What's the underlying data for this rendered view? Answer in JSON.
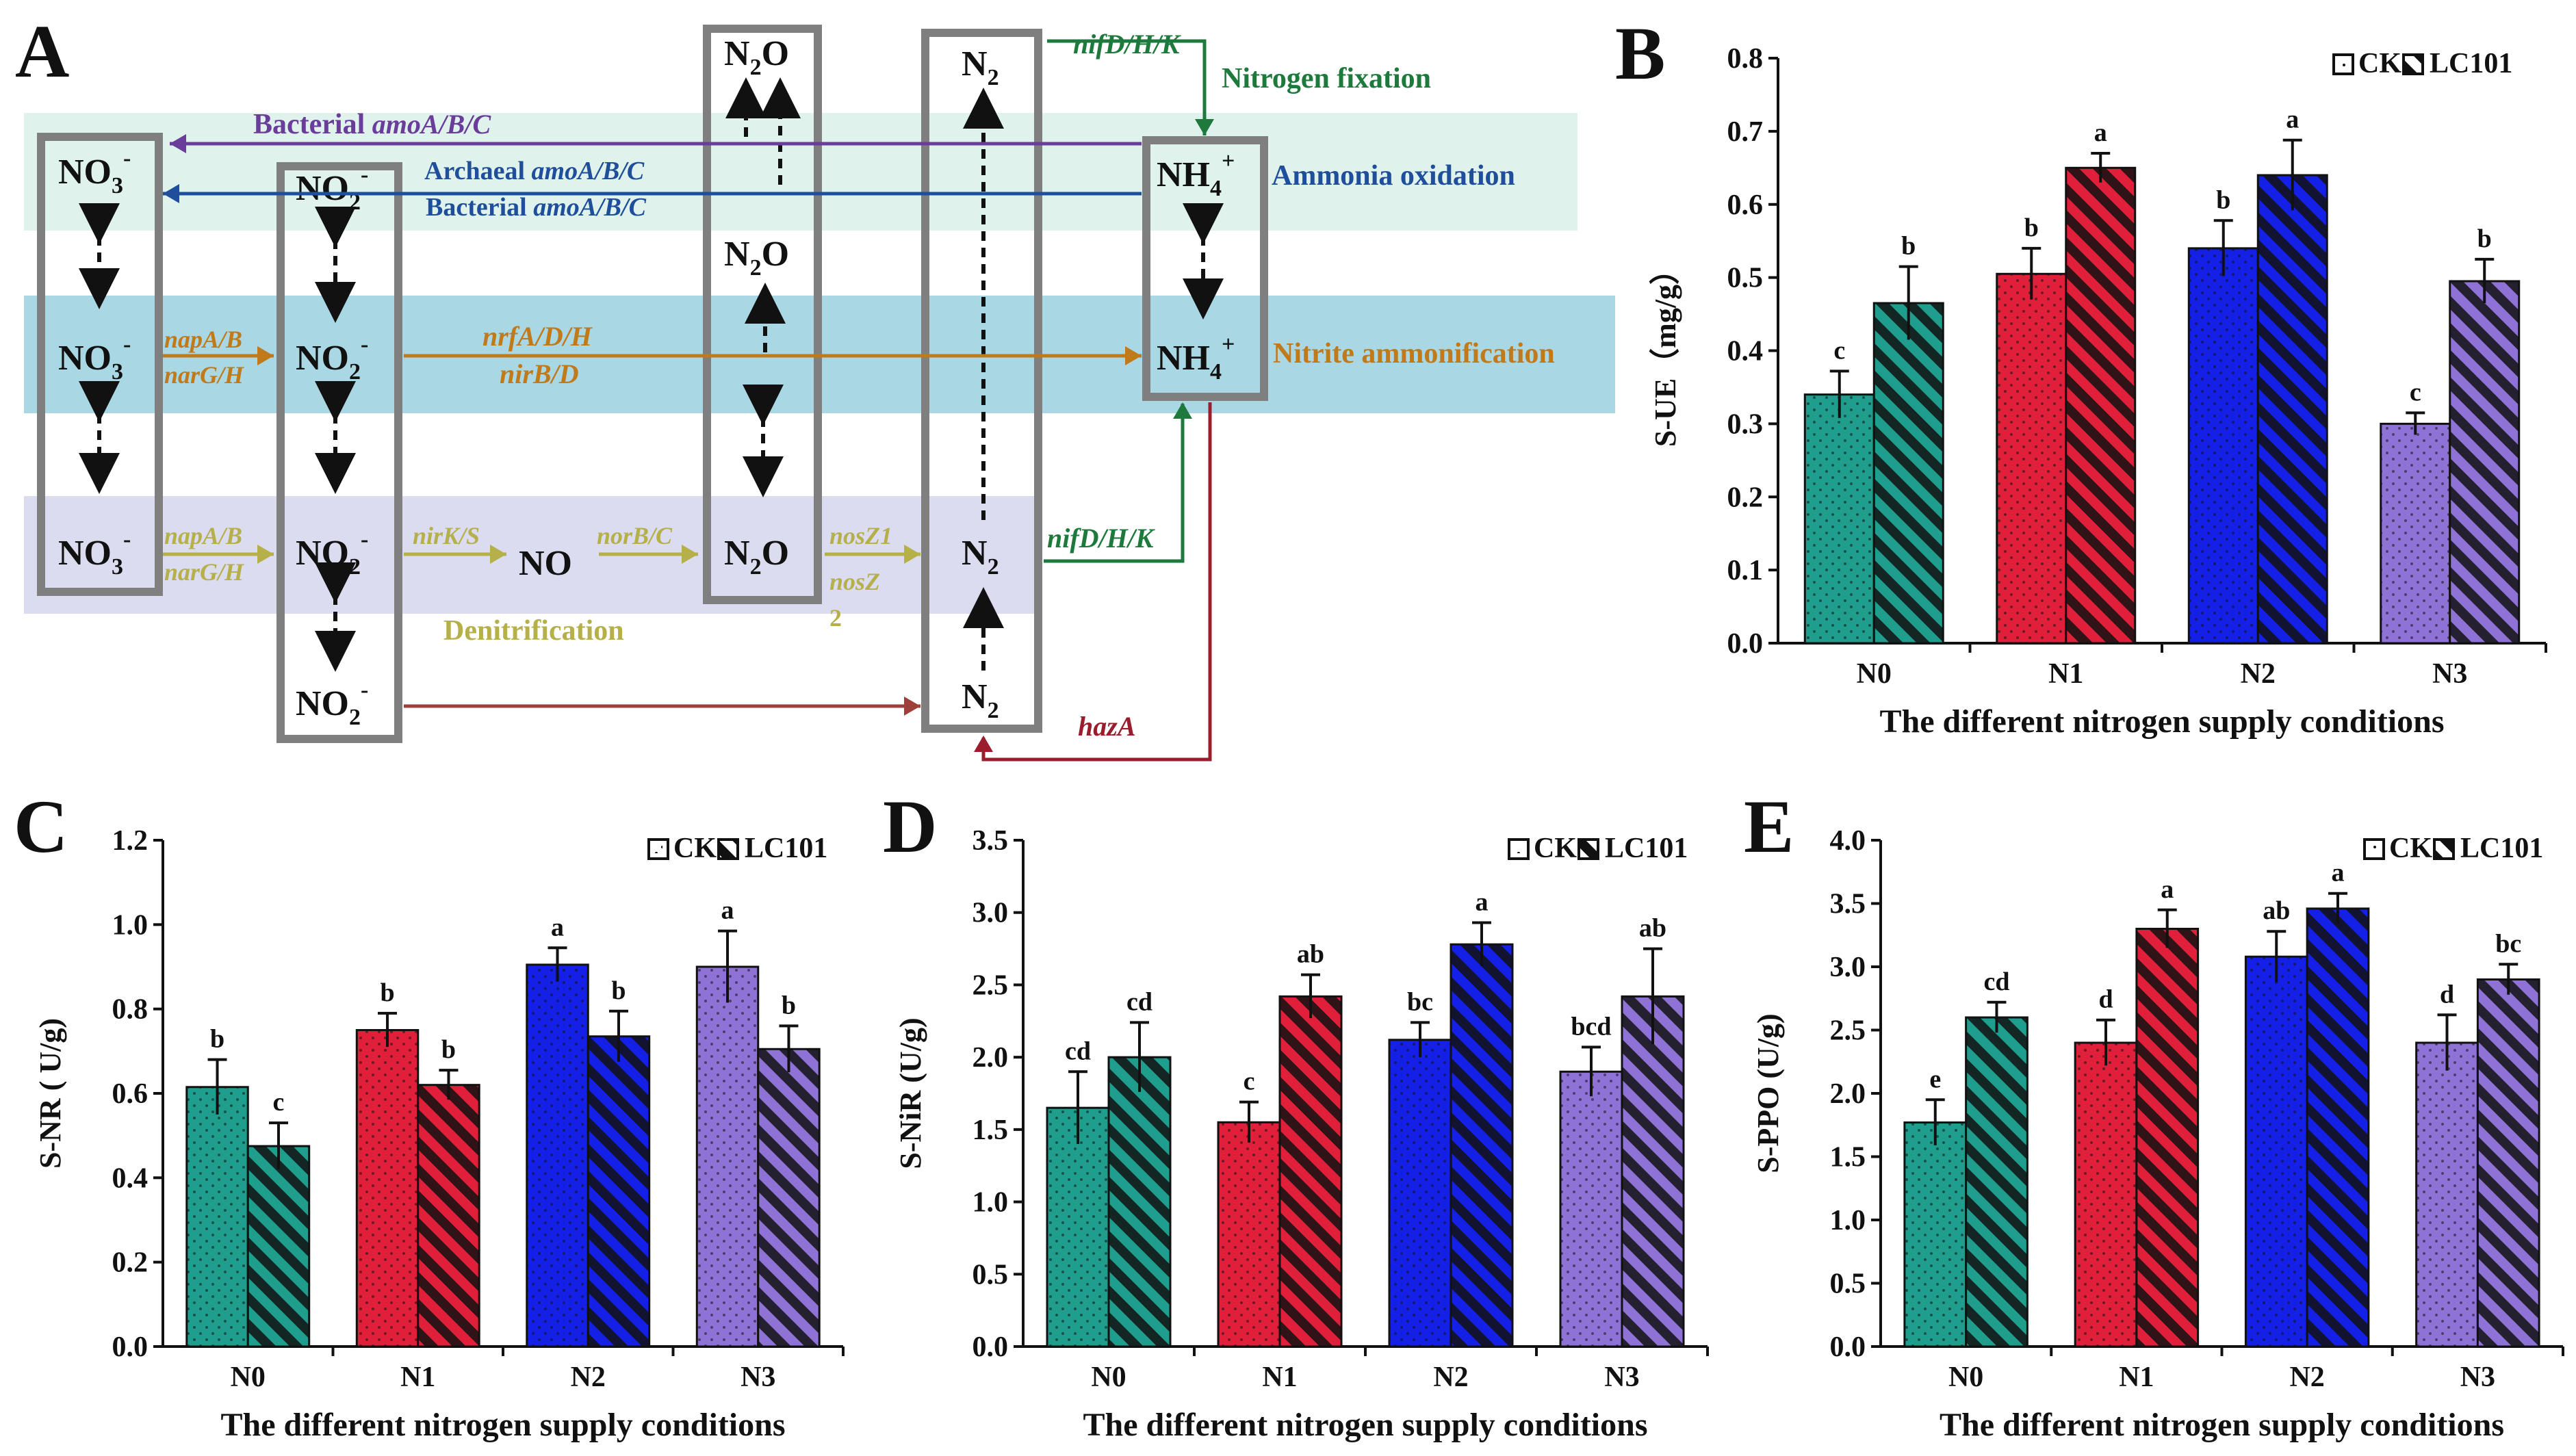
{
  "diagram": {
    "panel_label": "A",
    "processes": {
      "nitrogen_fixation": "Nitrogen fixation",
      "ammonia_oxidation": "Ammonia oxidation",
      "nitrite_ammonification": "Nitrite ammonification",
      "denitrification": "Denitrification"
    },
    "genes": {
      "nif_top": "nifD/H/K",
      "nif_mid": "nifD/H/K",
      "bact_amo_top_prefix": "Bacterial ",
      "bact_amo_top": "amoA/B/C",
      "arch_amo_prefix": "Archaeal ",
      "arch_amo": "amoA/B/C",
      "bact_amo_mid_prefix": "Bacterial ",
      "bact_amo_mid": "amoA/B/C",
      "nap1": "napA/B",
      "nar1": "narG/H",
      "nrfA": "nrfA/D/H",
      "nirB": "nirB/D",
      "nap2": "napA/B",
      "nar2": "narG/H",
      "nirK": "nirK/S",
      "norB": "norB/C",
      "nosZ1": "nosZ1",
      "nosZ": "nosZ",
      "nosZ_2": "2",
      "hazA": "hazA"
    },
    "species": {
      "no3": "NO",
      "no3_sub": "3",
      "no3_sup": "-",
      "no2": "NO",
      "no2_sub": "2",
      "no2_sup": "-",
      "n2o": "N",
      "n2o_sub": "2",
      "n2o_o": "O",
      "n2": "N",
      "n2_sub": "2",
      "nh4": "NH",
      "nh4_sub": "4",
      "nh4_sup": "+",
      "no": "NO"
    },
    "colors": {
      "nitrogen_fixation": "#1e7a3c",
      "bacterial_amo": "#6a3d9a",
      "ammonia_oxidation": "#1f4e9a",
      "nitrite_ammonification": "#c07a1a",
      "denitrification": "#b5b04a",
      "hazA": "#9b1c2c",
      "band_ammonia": "#dff3ec",
      "band_nitrite": "#a9d7e3",
      "band_denit": "#dcdcf0"
    }
  },
  "legend": {
    "ck": "CK",
    "lc101": "LC101"
  },
  "chart_data": [
    {
      "panel": "B",
      "type": "bar",
      "ylabel": "S-UE（mg/g）",
      "xlabel": "The different nitrogen supply conditions",
      "categories": [
        "N0",
        "N1",
        "N2",
        "N3"
      ],
      "ylim": [
        0,
        0.8
      ],
      "yticks": [
        "0.0",
        "0.1",
        "0.2",
        "0.3",
        "0.4",
        "0.5",
        "0.6",
        "0.7",
        "0.8"
      ],
      "series": [
        {
          "name": "CK",
          "values": [
            0.34,
            0.505,
            0.54,
            0.3
          ],
          "errors": [
            0.032,
            0.035,
            0.038,
            0.015
          ],
          "labels": [
            "c",
            "b",
            "b",
            "c"
          ]
        },
        {
          "name": "LC101",
          "values": [
            0.465,
            0.65,
            0.64,
            0.495
          ],
          "errors": [
            0.05,
            0.02,
            0.048,
            0.03
          ],
          "labels": [
            "b",
            "a",
            "a",
            "b"
          ]
        }
      ],
      "colors": [
        "#1f9e8e",
        "#e0203a",
        "#1520e6",
        "#8f72d6"
      ]
    },
    {
      "panel": "C",
      "type": "bar",
      "ylabel": "S-NR ( U/g)",
      "xlabel": "The different nitrogen supply conditions",
      "categories": [
        "N0",
        "N1",
        "N2",
        "N3"
      ],
      "ylim": [
        0,
        1.2
      ],
      "yticks": [
        "0.0",
        "0.2",
        "0.4",
        "0.6",
        "0.8",
        "1.0",
        "1.2"
      ],
      "series": [
        {
          "name": "CK",
          "values": [
            0.615,
            0.75,
            0.905,
            0.9
          ],
          "errors": [
            0.065,
            0.04,
            0.04,
            0.085
          ],
          "labels": [
            "b",
            "b",
            "a",
            "a"
          ]
        },
        {
          "name": "LC101",
          "values": [
            0.475,
            0.62,
            0.735,
            0.705
          ],
          "errors": [
            0.055,
            0.035,
            0.06,
            0.055
          ],
          "labels": [
            "c",
            "b",
            "b",
            "b"
          ]
        }
      ],
      "colors": [
        "#1f9e8e",
        "#e0203a",
        "#1520e6",
        "#8f72d6"
      ]
    },
    {
      "panel": "D",
      "type": "bar",
      "ylabel": "S-NiR (U/g)",
      "xlabel": "The different nitrogen supply conditions",
      "categories": [
        "N0",
        "N1",
        "N2",
        "N3"
      ],
      "ylim": [
        0,
        3.5
      ],
      "yticks": [
        "0.0",
        "0.5",
        "1.0",
        "1.5",
        "2.0",
        "2.5",
        "3.0",
        "3.5"
      ],
      "series": [
        {
          "name": "CK",
          "values": [
            1.65,
            1.55,
            2.12,
            1.9
          ],
          "errors": [
            0.25,
            0.14,
            0.12,
            0.17
          ],
          "labels": [
            "cd",
            "c",
            "bc",
            "bcd"
          ]
        },
        {
          "name": "LC101",
          "values": [
            2.0,
            2.42,
            2.78,
            2.42
          ],
          "errors": [
            0.24,
            0.15,
            0.15,
            0.33
          ],
          "labels": [
            "cd",
            "ab",
            "a",
            "ab"
          ]
        }
      ],
      "colors": [
        "#1f9e8e",
        "#e0203a",
        "#1520e6",
        "#8f72d6"
      ]
    },
    {
      "panel": "E",
      "type": "bar",
      "ylabel": "S-PPO (U/g)",
      "xlabel": "The different nitrogen supply conditions",
      "categories": [
        "N0",
        "N1",
        "N2",
        "N3"
      ],
      "ylim": [
        0,
        4.0
      ],
      "yticks": [
        "0.0",
        "0.5",
        "1.0",
        "1.5",
        "2.0",
        "2.5",
        "3.0",
        "3.5",
        "4.0"
      ],
      "series": [
        {
          "name": "CK",
          "values": [
            1.77,
            2.4,
            3.08,
            2.4
          ],
          "errors": [
            0.18,
            0.18,
            0.2,
            0.22
          ],
          "labels": [
            "e",
            "d",
            "ab",
            "d"
          ]
        },
        {
          "name": "LC101",
          "values": [
            2.6,
            3.3,
            3.46,
            2.9
          ],
          "errors": [
            0.12,
            0.15,
            0.12,
            0.12
          ],
          "labels": [
            "cd",
            "a",
            "a",
            "bc"
          ]
        }
      ],
      "colors": [
        "#1f9e8e",
        "#e0203a",
        "#1520e6",
        "#8f72d6"
      ]
    }
  ]
}
